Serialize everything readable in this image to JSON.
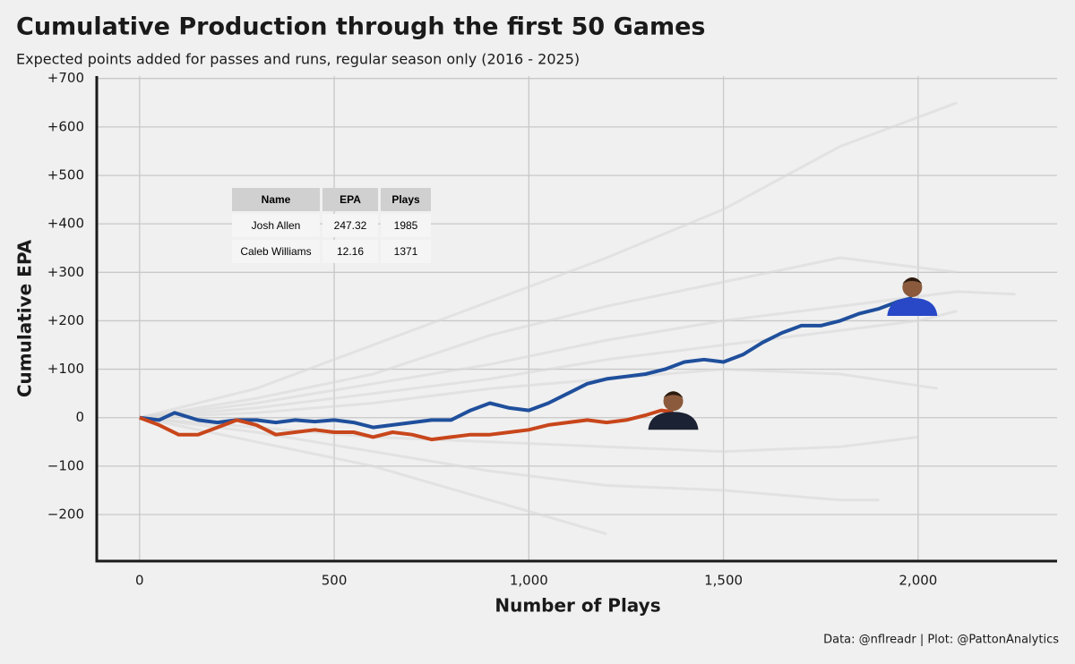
{
  "chart_data": {
    "type": "line",
    "title": "Cumulative Production through the first 50 Games",
    "subtitle": "Expected points added for passes and runs, regular season only (2016 - 2025)",
    "xlabel": "Number of Plays",
    "ylabel": "Cumulative EPA",
    "caption": "Data: @nflreadr | Plot: @PattonAnalytics",
    "xlim": [
      -110,
      2357
    ],
    "ylim": [
      -296,
      705
    ],
    "xticks": [
      0,
      500,
      {
        "value": 1000,
        "label": "1,000"
      },
      {
        "value": 1500,
        "label": "1,500"
      },
      {
        "value": 2000,
        "label": "2,000"
      }
    ],
    "yticks": [
      {
        "value": -200,
        "label": "−200"
      },
      {
        "value": -100,
        "label": "−100"
      },
      0,
      {
        "value": 100,
        "label": "+100"
      },
      {
        "value": 200,
        "label": "+200"
      },
      {
        "value": 300,
        "label": "+300"
      },
      {
        "value": 400,
        "label": "+400"
      },
      {
        "value": 500,
        "label": "+500"
      },
      {
        "value": 600,
        "label": "+600"
      },
      {
        "value": 700,
        "label": "+700"
      }
    ],
    "grid": true,
    "series": [
      {
        "color": "#d8d8d8",
        "x": [
          0,
          300,
          600,
          900,
          1200,
          1500,
          1800,
          2100
        ],
        "values": [
          0,
          60,
          150,
          240,
          330,
          430,
          560,
          650
        ]
      },
      {
        "color": "#d8d8d8",
        "x": [
          0,
          300,
          600,
          900,
          1200,
          1500,
          1800,
          2100
        ],
        "values": [
          0,
          40,
          90,
          170,
          230,
          280,
          330,
          300
        ]
      },
      {
        "color": "#d8d8d8",
        "x": [
          0,
          300,
          600,
          900,
          1200,
          1500,
          1800,
          2100,
          2250
        ],
        "values": [
          0,
          30,
          70,
          110,
          160,
          200,
          230,
          260,
          255
        ]
      },
      {
        "color": "#d8d8d8",
        "x": [
          0,
          300,
          600,
          900,
          1200,
          1500,
          1800,
          2050
        ],
        "values": [
          0,
          10,
          30,
          60,
          80,
          100,
          90,
          60
        ]
      },
      {
        "color": "#d8d8d8",
        "x": [
          0,
          300,
          600,
          900,
          1200,
          1500,
          1800,
          2000
        ],
        "values": [
          0,
          -20,
          -40,
          -50,
          -60,
          -70,
          -60,
          -40
        ]
      },
      {
        "color": "#d8d8d8",
        "x": [
          0,
          300,
          600,
          900,
          1200,
          1500,
          1800,
          1900
        ],
        "values": [
          0,
          -30,
          -70,
          -110,
          -140,
          -150,
          -170,
          -170
        ]
      },
      {
        "color": "#d8d8d8",
        "x": [
          0,
          300,
          600,
          900,
          1200
        ],
        "values": [
          0,
          -50,
          -100,
          -170,
          -240
        ]
      },
      {
        "color": "#d8d8d8",
        "x": [
          0,
          300,
          600,
          900,
          1200,
          1500,
          1800,
          2000,
          2100
        ],
        "values": [
          0,
          20,
          50,
          80,
          120,
          150,
          180,
          200,
          220
        ]
      },
      {
        "name": "Josh Allen",
        "color": "#1f4f9c",
        "x": [
          0,
          50,
          90,
          150,
          200,
          250,
          300,
          350,
          400,
          450,
          500,
          550,
          600,
          650,
          700,
          750,
          800,
          850,
          900,
          950,
          1000,
          1050,
          1100,
          1150,
          1200,
          1250,
          1300,
          1350,
          1400,
          1450,
          1500,
          1550,
          1600,
          1650,
          1700,
          1750,
          1800,
          1850,
          1900,
          1950,
          1985
        ],
        "values": [
          0,
          -5,
          10,
          -5,
          -10,
          -5,
          -5,
          -10,
          -5,
          -8,
          -5,
          -10,
          -20,
          -15,
          -10,
          -5,
          -5,
          15,
          30,
          20,
          15,
          30,
          50,
          70,
          80,
          85,
          90,
          100,
          115,
          120,
          115,
          130,
          155,
          175,
          190,
          190,
          200,
          215,
          225,
          240,
          247
        ]
      },
      {
        "name": "Caleb Williams",
        "color": "#c8461b",
        "x": [
          0,
          50,
          100,
          150,
          200,
          250,
          300,
          350,
          400,
          450,
          500,
          550,
          600,
          650,
          700,
          750,
          800,
          850,
          900,
          950,
          1000,
          1050,
          1100,
          1150,
          1200,
          1250,
          1300,
          1340,
          1371
        ],
        "values": [
          0,
          -15,
          -35,
          -35,
          -20,
          -5,
          -15,
          -35,
          -30,
          -25,
          -30,
          -30,
          -40,
          -30,
          -35,
          -45,
          -40,
          -35,
          -35,
          -30,
          -25,
          -15,
          -10,
          -5,
          -10,
          -5,
          5,
          15,
          12
        ]
      }
    ]
  },
  "table": {
    "columns": [
      "Name",
      "EPA",
      "Plays"
    ],
    "rows": [
      [
        "Josh Allen",
        247.32,
        1985
      ],
      [
        "Caleb Williams",
        12.16,
        1371
      ]
    ]
  }
}
